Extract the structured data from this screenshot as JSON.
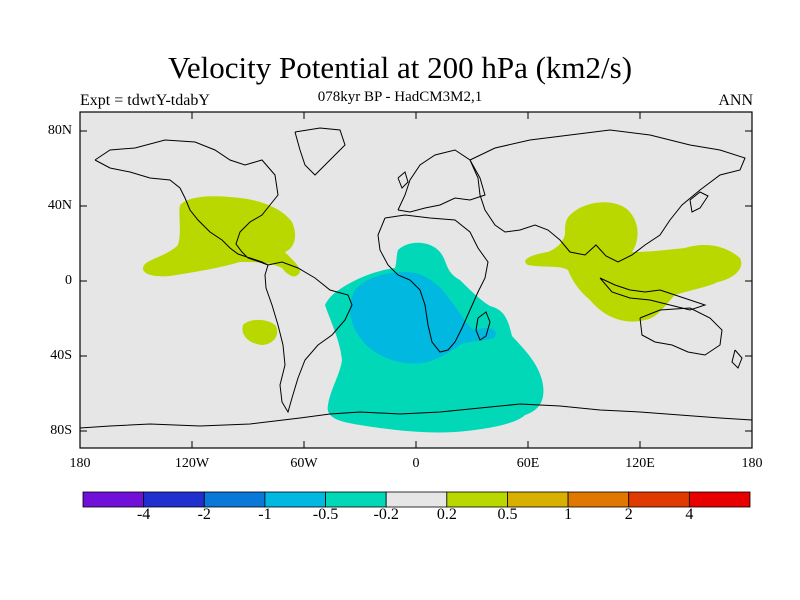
{
  "title": "Velocity Potential at 200 hPa (km2/s)",
  "subtitle": "078kyr BP - HadCM3M2,1",
  "left_label": "Expt = tdwtY-tdabY",
  "right_label": "ANN",
  "axes": {
    "lat_ticks": [
      "80N",
      "40N",
      "0",
      "40S",
      "80S"
    ],
    "lon_ticks": [
      "180",
      "120W",
      "60W",
      "0",
      "60E",
      "120E",
      "180"
    ]
  },
  "colorbar": {
    "colors": [
      "#7010d8",
      "#2030d0",
      "#0a78d8",
      "#00b8e0",
      "#00d8b8",
      "#e6e6e6",
      "#b8d800",
      "#d8b000",
      "#e07800",
      "#e03a00",
      "#e80000"
    ],
    "labels": [
      "-4",
      "-2",
      "-1",
      "-0.5",
      "-0.2",
      "0.2",
      "0.5",
      "1",
      "2",
      "4"
    ]
  },
  "colors": {
    "background": "#e6e6e6",
    "positive_light": "#b8d800",
    "negative_light": "#00d8b8",
    "negative_mid": "#00b8e0"
  }
}
